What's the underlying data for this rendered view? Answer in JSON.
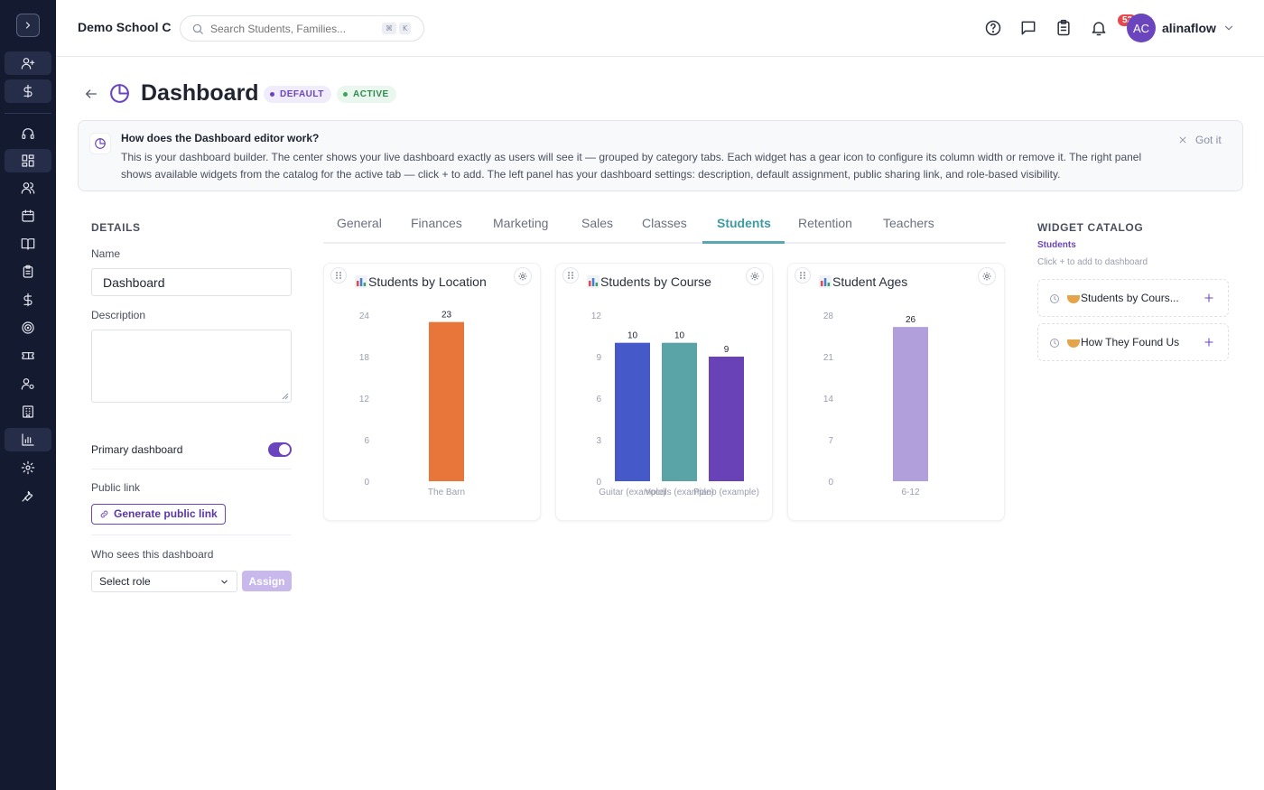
{
  "header": {
    "school_name": "Demo School C",
    "search_placeholder": "Search Students, Families...",
    "shortcut_keys": [
      "⌘",
      "K"
    ],
    "notification_count": "52",
    "avatar_initials": "AC",
    "username": "alinaflow"
  },
  "sidebar": {
    "items": [
      "chevron-right-icon",
      "user-plus-icon",
      "dollar-icon",
      "headset-icon",
      "dashboard-grid-icon",
      "users-icon",
      "calendar-icon",
      "book-icon",
      "clipboard-icon",
      "dollar-icon",
      "target-icon",
      "ticket-icon",
      "user-settings-icon",
      "building-icon",
      "bar-chart-icon",
      "gear-icon",
      "wrench-icon"
    ]
  },
  "page": {
    "title": "Dashboard",
    "badge_default": "DEFAULT",
    "badge_active": "ACTIVE"
  },
  "info": {
    "title": "How does the Dashboard editor work?",
    "text": "This is your dashboard builder. The center shows your live dashboard exactly as users will see it — grouped by category tabs. Each widget has a gear icon to configure its column width or remove it. The right panel shows available widgets from the catalog for the active tab — click + to add. The left panel has your dashboard settings: description, default assignment, public sharing link, and role-based visibility.",
    "dismiss": "Got it"
  },
  "details": {
    "heading": "DETAILS",
    "name_label": "Name",
    "name_value": "Dashboard",
    "description_label": "Description",
    "description_value": "",
    "primary_label": "Primary dashboard",
    "primary_on": true,
    "public_link_label": "Public link",
    "generate_link_button": "Generate public link",
    "visibility_label": "Who sees this dashboard",
    "role_select_value": "Select role",
    "assign_button": "Assign"
  },
  "tabs": [
    {
      "label": "General",
      "active": false
    },
    {
      "label": "Finances",
      "active": false
    },
    {
      "label": "Marketing",
      "active": false
    },
    {
      "label": "Sales",
      "active": false
    },
    {
      "label": "Classes",
      "active": false
    },
    {
      "label": "Students",
      "active": true
    },
    {
      "label": "Retention",
      "active": false
    },
    {
      "label": "Teachers",
      "active": false
    }
  ],
  "chart_data": [
    {
      "type": "bar",
      "title": "Students by Location",
      "categories": [
        "The Barn"
      ],
      "values": [
        23
      ],
      "ylim": [
        0,
        24
      ],
      "yticks": [
        0,
        6,
        12,
        18,
        24
      ],
      "colors": [
        "#e8763a"
      ],
      "grid": false
    },
    {
      "type": "bar",
      "title": "Students by Course",
      "categories": [
        "Guitar (example)",
        "Vocals (example)",
        "Piano (example)"
      ],
      "values": [
        10,
        10,
        9
      ],
      "ylim": [
        0,
        12
      ],
      "yticks": [
        0,
        3,
        6,
        9,
        12
      ],
      "colors": [
        "#4659c9",
        "#5aa3a6",
        "#6a42b8"
      ],
      "grid": false
    },
    {
      "type": "bar",
      "title": "Student Ages",
      "categories": [
        "6-12"
      ],
      "values": [
        26
      ],
      "ylim": [
        0,
        28
      ],
      "yticks": [
        0,
        7,
        14,
        21,
        28
      ],
      "colors": [
        "#b19fdc"
      ],
      "grid": false
    }
  ],
  "catalog": {
    "title": "WIDGET CATALOG",
    "active_tab": "Students",
    "hint": "Click + to add to dashboard",
    "items": [
      {
        "label": "Students by Cours..."
      },
      {
        "label": "How They Found Us"
      }
    ]
  },
  "colors": {
    "sidebar_bg": "#141a30",
    "accent": "#6b45bd",
    "tab_active": "#3f9aa3"
  }
}
